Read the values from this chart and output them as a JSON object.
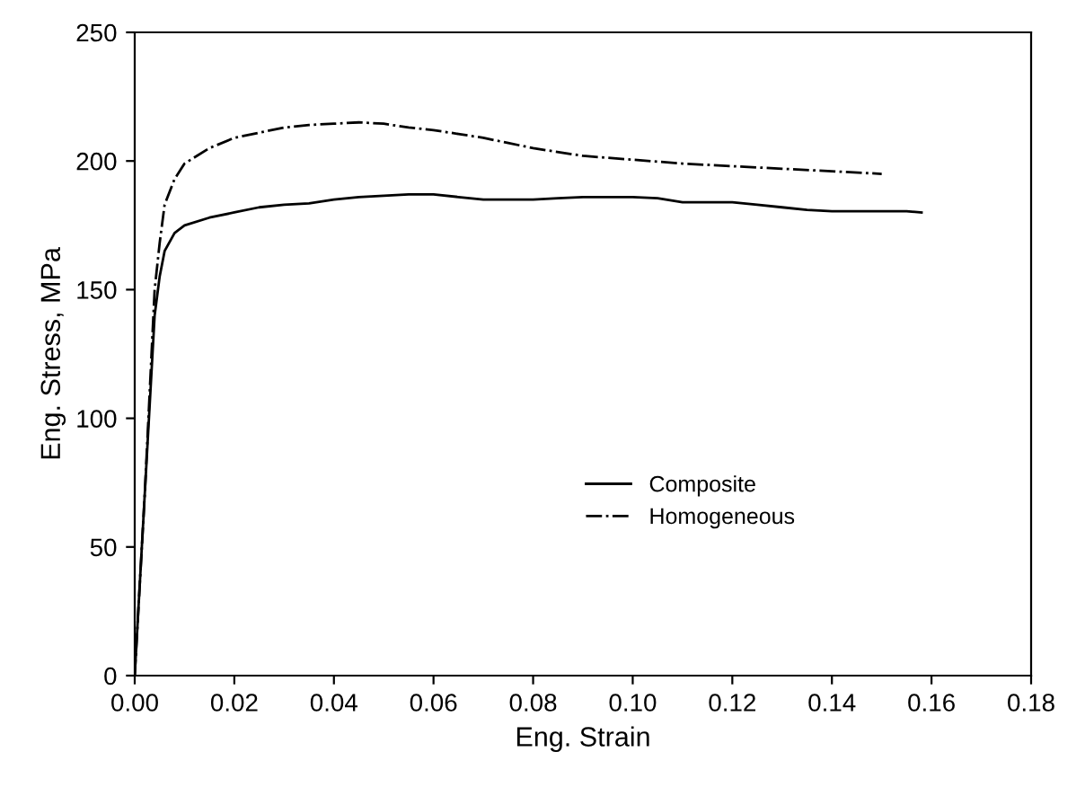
{
  "chart_data": {
    "type": "line",
    "xlabel": "Eng. Strain",
    "ylabel": "Eng. Stress, MPa",
    "xlim": [
      0,
      0.18
    ],
    "ylim": [
      0,
      250
    ],
    "xticks": [
      {
        "value": 0,
        "label": "0.00"
      },
      {
        "value": 0.02,
        "label": "0.02"
      },
      {
        "value": 0.04,
        "label": "0.04"
      },
      {
        "value": 0.06,
        "label": "0.06"
      },
      {
        "value": 0.08,
        "label": "0.08"
      },
      {
        "value": 0.1,
        "label": "0.10"
      },
      {
        "value": 0.12,
        "label": "0.12"
      },
      {
        "value": 0.14,
        "label": "0.14"
      },
      {
        "value": 0.16,
        "label": "0.16"
      },
      {
        "value": 0.18,
        "label": "0.18"
      }
    ],
    "yticks": [
      0,
      50,
      100,
      150,
      200,
      250
    ],
    "grid": false,
    "legend": "bottom",
    "marker": "none",
    "series": [
      {
        "name": "Composite",
        "color": "#000000",
        "line_style": "solid",
        "x": [
          0,
          0.002,
          0.004,
          0.005,
          0.006,
          0.008,
          0.01,
          0.015,
          0.02,
          0.025,
          0.03,
          0.035,
          0.04,
          0.045,
          0.05,
          0.055,
          0.06,
          0.065,
          0.07,
          0.075,
          0.08,
          0.085,
          0.09,
          0.095,
          0.1,
          0.105,
          0.11,
          0.115,
          0.12,
          0.125,
          0.13,
          0.135,
          0.14,
          0.145,
          0.15,
          0.155,
          0.158
        ],
        "values": [
          0,
          70,
          140,
          155,
          165,
          172,
          175,
          178,
          180,
          182,
          183,
          183.5,
          185,
          186,
          186.5,
          187,
          187,
          186,
          185,
          185,
          185,
          185.5,
          186,
          186,
          186,
          185.5,
          184,
          184,
          184,
          183,
          182,
          181,
          180.5,
          180.5,
          180.5,
          180.5,
          180
        ]
      },
      {
        "name": "Homogeneous",
        "color": "#000000",
        "line_style": "dashdot",
        "x": [
          0,
          0.002,
          0.004,
          0.005,
          0.006,
          0.008,
          0.01,
          0.015,
          0.02,
          0.025,
          0.03,
          0.035,
          0.04,
          0.045,
          0.05,
          0.055,
          0.06,
          0.065,
          0.07,
          0.075,
          0.08,
          0.09,
          0.1,
          0.11,
          0.12,
          0.13,
          0.14,
          0.15
        ],
        "values": [
          0,
          70,
          150,
          168,
          183,
          193,
          199,
          205,
          209,
          211,
          213,
          214,
          214.5,
          215,
          214.5,
          213,
          212,
          210.5,
          209,
          207,
          205,
          202,
          200.5,
          199,
          198,
          197,
          196,
          195
        ]
      }
    ]
  }
}
